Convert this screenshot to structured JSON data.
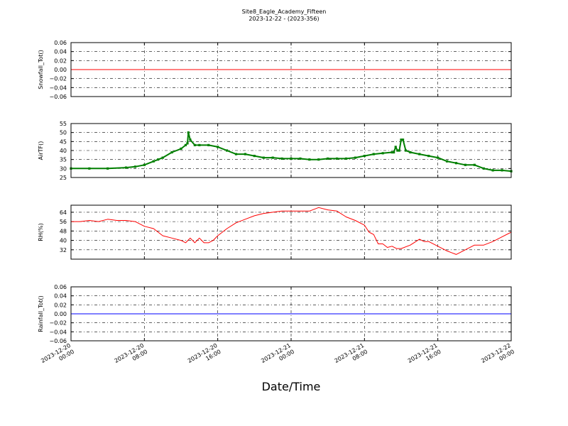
{
  "title": "Site8_Eagle_Academy_Fifteen",
  "subtitle": "2023-12-22 - (2023-356)",
  "xlabel": "Date/Time",
  "x_ticks": [
    {
      "l1": "2023-12-20",
      "l2": "00:00"
    },
    {
      "l1": "2023-12-20",
      "l2": "08:00"
    },
    {
      "l1": "2023-12-20",
      "l2": "16:00"
    },
    {
      "l1": "2023-12-21",
      "l2": "00:00"
    },
    {
      "l1": "2023-12-21",
      "l2": "08:00"
    },
    {
      "l1": "2023-12-21",
      "l2": "16:00"
    },
    {
      "l1": "2023-12-22",
      "l2": "00:00"
    }
  ],
  "chart_data": [
    {
      "type": "line",
      "ylabel": "Snowfall_Tot()",
      "color": "#ff0000",
      "markers": false,
      "x_unit": "hours since 2023-12-20 00:00",
      "ylim": [
        -0.06,
        0.06
      ],
      "yticks": [
        -0.06,
        -0.04,
        -0.02,
        0.0,
        0.02,
        0.04,
        0.06
      ],
      "tick_decimals": 2,
      "grid": true,
      "x": [
        0,
        48
      ],
      "y": [
        0,
        0
      ]
    },
    {
      "type": "line",
      "ylabel": "AirTF()",
      "color": "#007f00",
      "markers": true,
      "ylim": [
        25,
        55
      ],
      "yticks": [
        25,
        30,
        35,
        40,
        45,
        50,
        55
      ],
      "tick_decimals": 0,
      "grid": true,
      "x": [
        0,
        2,
        4,
        6,
        7,
        8,
        9,
        9.5,
        10,
        11,
        12,
        12.5,
        12.7,
        12.8,
        13,
        13.5,
        14,
        15,
        16,
        17,
        18,
        19,
        20,
        21,
        22,
        23,
        24,
        25,
        26,
        27,
        28,
        29,
        30,
        31,
        32,
        33,
        34,
        35,
        35.2,
        35.4,
        35.6,
        35.8,
        36,
        36.2,
        36.5,
        37,
        38,
        39,
        40,
        41,
        42,
        43,
        44,
        45,
        46,
        47,
        48
      ],
      "y": [
        30,
        30,
        30,
        30.5,
        31,
        32,
        34,
        35,
        36,
        39,
        41,
        43,
        44,
        50,
        46,
        43,
        43,
        43,
        42,
        40,
        38,
        38,
        37,
        36,
        36,
        35.5,
        35.5,
        35.5,
        35,
        35,
        35.5,
        35.5,
        35.5,
        36,
        37,
        38,
        38.5,
        39,
        39,
        42,
        40,
        40,
        46,
        46,
        40,
        39,
        38,
        37,
        36,
        34,
        33,
        32,
        32,
        30,
        29,
        29,
        28.5
      ]
    },
    {
      "type": "line",
      "ylabel": "RH(%)",
      "color": "#ff0000",
      "markers": false,
      "ylim": [
        24,
        70
      ],
      "yticks": [
        32,
        40,
        48,
        56,
        64
      ],
      "tick_decimals": 0,
      "grid": true,
      "x": [
        0,
        1,
        2,
        3,
        4,
        5,
        6,
        7,
        8,
        9,
        10,
        11,
        12,
        12.5,
        13,
        13.5,
        14,
        14.5,
        15,
        15.5,
        16,
        17,
        18,
        19,
        20,
        21,
        22,
        23,
        24,
        25,
        26,
        27,
        28,
        29,
        30,
        31,
        32,
        32.5,
        33,
        33.5,
        34,
        34.5,
        35,
        35.5,
        36,
        37,
        38,
        38.5,
        39,
        40,
        41,
        42,
        43,
        44,
        45,
        46,
        47,
        48
      ],
      "y": [
        56,
        56,
        57,
        56,
        58,
        57,
        57,
        56,
        52,
        50,
        44,
        42,
        40,
        38,
        42,
        38,
        42,
        38,
        38,
        40,
        44,
        50,
        55,
        58,
        61,
        63,
        64,
        65,
        65,
        65,
        65,
        68,
        66,
        65,
        60,
        57,
        53,
        47,
        45,
        37,
        37,
        34,
        35,
        33,
        33,
        36,
        41,
        39,
        39,
        35,
        31,
        28,
        32,
        36,
        36,
        39,
        43,
        47
      ]
    },
    {
      "type": "line",
      "ylabel": "Rainfall_Tot()",
      "color": "#0000ff",
      "markers": false,
      "ylim": [
        -0.06,
        0.06
      ],
      "yticks": [
        -0.06,
        -0.04,
        -0.02,
        0.0,
        0.02,
        0.04,
        0.06
      ],
      "tick_decimals": 2,
      "grid": true,
      "x": [
        0,
        48
      ],
      "y": [
        0,
        0
      ]
    }
  ]
}
